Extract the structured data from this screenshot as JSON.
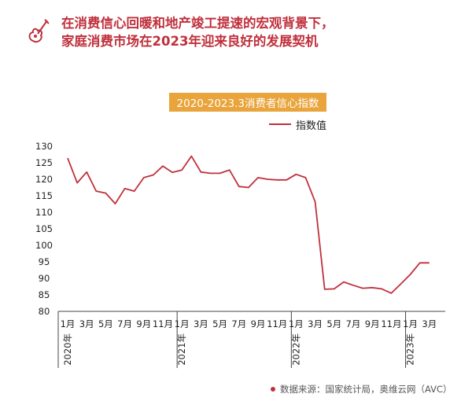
{
  "header": {
    "line1": "在消费信心回暖和地产竣工提速的宏观背景下，",
    "line2": "家庭消费市场在2023年迎来良好的发展契机"
  },
  "source": "数据来源：国家统计局，奥维云网（AVC）",
  "colors": {
    "accent": "#c0303c",
    "title_bg": "#e9a43b",
    "axis": "#444444"
  },
  "chart_data": {
    "type": "line",
    "title": "2020-2023.3消费者信心指数",
    "xlabel": "",
    "ylabel": "",
    "ylim": [
      80,
      130
    ],
    "yticks": [
      80,
      85,
      90,
      95,
      100,
      105,
      110,
      115,
      120,
      125,
      130
    ],
    "grid": false,
    "legend": "top-right",
    "x": [
      "2020-01",
      "2020-02",
      "2020-03",
      "2020-04",
      "2020-05",
      "2020-06",
      "2020-07",
      "2020-08",
      "2020-09",
      "2020-10",
      "2020-11",
      "2020-12",
      "2021-01",
      "2021-02",
      "2021-03",
      "2021-04",
      "2021-05",
      "2021-06",
      "2021-07",
      "2021-08",
      "2021-09",
      "2021-10",
      "2021-11",
      "2021-12",
      "2022-01",
      "2022-02",
      "2022-03",
      "2022-04",
      "2022-05",
      "2022-06",
      "2022-07",
      "2022-08",
      "2022-09",
      "2022-10",
      "2022-11",
      "2022-12",
      "2023-01",
      "2023-02",
      "2023-03"
    ],
    "x_tick_labels": [
      "1月",
      "3月",
      "5月",
      "7月",
      "9月",
      "11月",
      "1月",
      "3月",
      "5月",
      "7月",
      "9月",
      "11月",
      "1月",
      "3月",
      "5月",
      "7月",
      "9月",
      "11月",
      "1月",
      "3月"
    ],
    "year_labels": [
      {
        "label": "2020年",
        "at": "2020-01"
      },
      {
        "label": "2021年",
        "at": "2021-01"
      },
      {
        "label": "2022年",
        "at": "2022-01"
      },
      {
        "label": "2023年",
        "at": "2023-01"
      }
    ],
    "series": [
      {
        "name": "指数值",
        "values": [
          126.4,
          118.9,
          122.2,
          116.4,
          115.8,
          112.6,
          117.2,
          116.4,
          120.5,
          121.3,
          124.0,
          122.1,
          122.8,
          127.0,
          122.2,
          121.8,
          121.8,
          122.8,
          117.8,
          117.5,
          120.5,
          120.0,
          119.8,
          119.8,
          121.5,
          120.5,
          113.2,
          86.7,
          86.8,
          88.9,
          87.9,
          87.0,
          87.2,
          86.8,
          85.5,
          88.3,
          91.2,
          94.7,
          94.7
        ]
      }
    ]
  }
}
